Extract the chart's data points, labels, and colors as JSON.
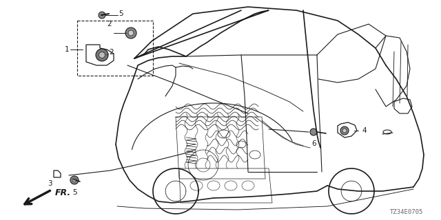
{
  "diagram_code": "TZ34E0705",
  "bg_color": "#ffffff",
  "line_color": "#1a1a1a",
  "fig_width": 6.4,
  "fig_height": 3.2,
  "dpi": 100,
  "label_fontsize": 7.5,
  "diagram_code_fontsize": 6.5
}
